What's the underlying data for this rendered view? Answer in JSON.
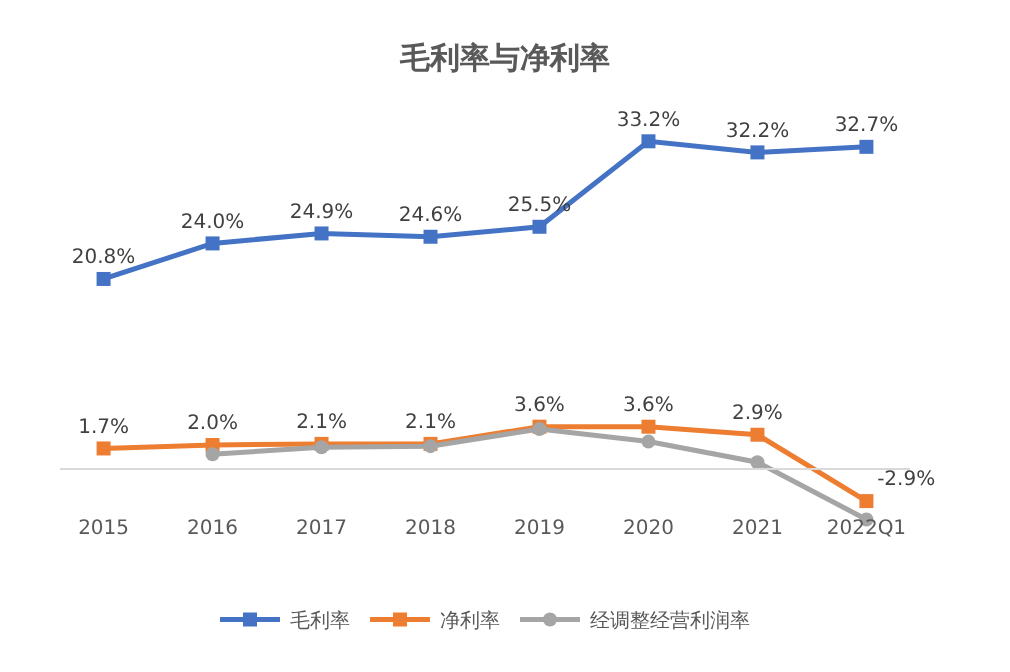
{
  "chart_data": [
    {
      "type": "line",
      "title": "毛利率与净利率",
      "legend": "bottom",
      "tick_labels": false,
      "series": [
        {
          "name": "毛利率",
          "color": "#4472c4",
          "marker": "square",
          "values": [
            20.8,
            24.0,
            24.9,
            24.6,
            25.5,
            33.2,
            32.2,
            32.7
          ],
          "value_labels": [
            "20.8%",
            "24.0%",
            "24.9%",
            "24.6%",
            "25.5%",
            "33.2%",
            "32.2%",
            "32.7%"
          ]
        }
      ]
    },
    {
      "type": "line",
      "legend": "bottom",
      "tick_labels": "x",
      "categories": [
        "2015",
        "2016",
        "2017",
        "2018",
        "2019",
        "2020",
        "2021",
        "2022Q1"
      ],
      "series": [
        {
          "name": "净利率",
          "color": "#ed7d31",
          "marker": "square",
          "values": [
            1.7,
            2.0,
            2.1,
            2.1,
            3.6,
            3.6,
            2.9,
            -2.9
          ],
          "value_labels": [
            "1.7%",
            "2.0%",
            "2.1%",
            "2.1%",
            "3.6%",
            "3.6%",
            "2.9%",
            "-2.9%"
          ]
        },
        {
          "name": "经调整经营利润率",
          "color": "#a5a5a5",
          "marker": "circle",
          "values": [
            null,
            1.2,
            1.8,
            1.9,
            3.4,
            2.3,
            0.5,
            -4.5
          ]
        }
      ]
    }
  ]
}
